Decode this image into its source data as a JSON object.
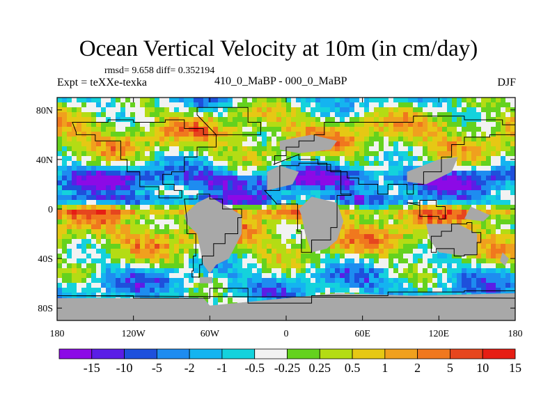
{
  "title": "Ocean Vertical Velocity at 10m (in cm/day)",
  "stats": "rmsd= 9.658 diff= 0.352194",
  "experiment": "Expt = teXXe-texka",
  "comparison": "410_0_MaBP - 000_0_MaBP",
  "season": "DJF",
  "map": {
    "x_ticks": [
      "180",
      "120W",
      "60W",
      "0",
      "60E",
      "120E",
      "180"
    ],
    "y_ticks": [
      "80N",
      "40N",
      "0",
      "40S",
      "80S"
    ],
    "land_color": "#a8a8a8",
    "colors": [
      "#8c0ae6",
      "#5a1ee6",
      "#1e50dc",
      "#1e8cf0",
      "#14b4f0",
      "#14d2dc",
      "#f2f2f2",
      "#64d21e",
      "#b4dc14",
      "#e6c814",
      "#f0a01e",
      "#f0781e",
      "#e6461e",
      "#e61e14"
    ]
  },
  "colorbar": {
    "labels": [
      "-15",
      "-10",
      "-5",
      "-2",
      "-1",
      "-0.5",
      "-0.25",
      "0.25",
      "0.5",
      "1",
      "2",
      "5",
      "10",
      "15"
    ],
    "colors": [
      "#8c0ae6",
      "#5a1ee6",
      "#1e50dc",
      "#1e8cf0",
      "#14b4f0",
      "#14d2dc",
      "#f2f2f2",
      "#64d21e",
      "#b4dc14",
      "#e6c814",
      "#f0a01e",
      "#f0781e",
      "#e6461e",
      "#e61e14"
    ]
  }
}
